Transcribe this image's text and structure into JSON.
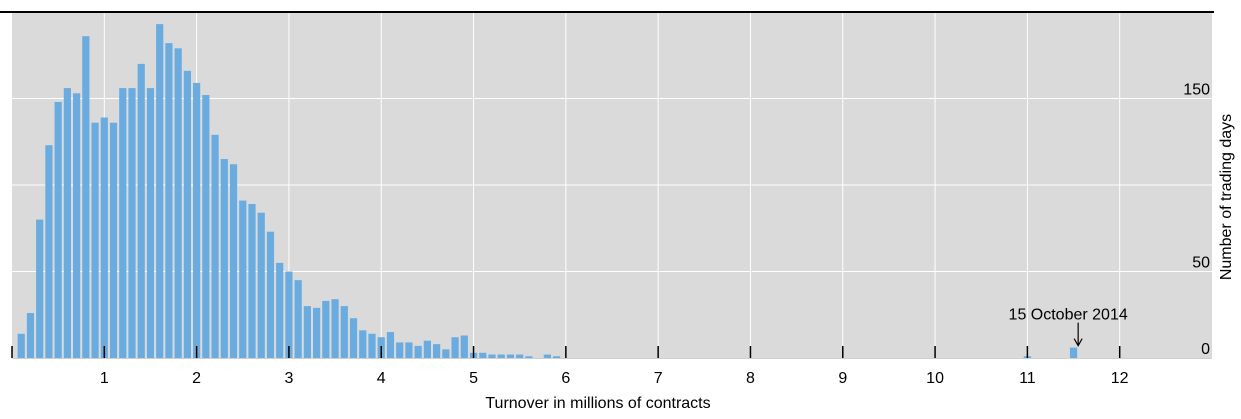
{
  "chart_data": {
    "type": "bar",
    "title": "",
    "xlabel": "Turnover in millions of contracts",
    "ylabel": "Number of trading days",
    "xlim": [
      0,
      13
    ],
    "ylim": [
      0,
      200
    ],
    "x_ticks": [
      1,
      2,
      3,
      4,
      5,
      6,
      7,
      8,
      9,
      10,
      11,
      12
    ],
    "y_ticks": [
      0,
      50,
      100,
      150
    ],
    "y_tick_labels": [
      "0",
      "50",
      "",
      "150"
    ],
    "grid": true,
    "bin_width": 0.1,
    "bin_centers": [
      0.1,
      0.2,
      0.3,
      0.4,
      0.5,
      0.6,
      0.7,
      0.8,
      0.9,
      1.0,
      1.1,
      1.2,
      1.3,
      1.4,
      1.5,
      1.6,
      1.7,
      1.8,
      1.9,
      2.0,
      2.1,
      2.2,
      2.3,
      2.4,
      2.5,
      2.6,
      2.7,
      2.8,
      2.9,
      3.0,
      3.1,
      3.2,
      3.3,
      3.4,
      3.5,
      3.6,
      3.7,
      3.8,
      3.9,
      4.0,
      4.1,
      4.2,
      4.3,
      4.4,
      4.5,
      4.6,
      4.7,
      4.8,
      4.9,
      5.0,
      5.1,
      5.2,
      5.3,
      5.4,
      5.5,
      5.6,
      5.7,
      5.8,
      5.9,
      6.0,
      6.1,
      6.2,
      6.3,
      6.4,
      6.5,
      6.6,
      6.7,
      6.8,
      6.9,
      7.0,
      7.1,
      7.2,
      7.3,
      7.4,
      7.5,
      7.6,
      7.7,
      7.8,
      7.9,
      8.0,
      8.1,
      8.2,
      8.3,
      8.4,
      8.5,
      8.6,
      8.7,
      8.8,
      8.9,
      9.0,
      9.1,
      9.2,
      9.3,
      9.4,
      9.5,
      9.6,
      9.7,
      9.8,
      9.9,
      10.0,
      10.1,
      10.2,
      10.3,
      10.4,
      10.5,
      10.6,
      10.7,
      10.8,
      10.9,
      11.0,
      11.1,
      11.2,
      11.3,
      11.4,
      11.5,
      11.6,
      11.7,
      11.8,
      11.9,
      12.0,
      12.1,
      12.2,
      12.3,
      12.4,
      12.5,
      12.6,
      12.7,
      12.8,
      12.9
    ],
    "values": [
      14,
      26,
      80,
      123,
      148,
      156,
      153,
      186,
      136,
      139,
      136,
      156,
      156,
      170,
      156,
      193,
      182,
      179,
      166,
      159,
      152,
      129,
      115,
      112,
      91,
      89,
      84,
      73,
      55,
      50,
      45,
      30,
      29,
      33,
      34,
      30,
      23,
      16,
      14,
      12,
      15,
      9,
      9,
      7,
      10,
      8,
      5,
      12,
      13,
      3,
      3,
      2,
      2,
      2,
      2,
      1,
      0,
      2,
      1,
      0,
      0,
      0,
      0,
      0,
      0,
      0,
      0,
      0,
      0,
      0,
      0,
      0,
      0,
      0,
      0,
      0,
      0,
      0,
      0,
      0,
      0,
      0,
      0,
      0,
      0,
      0,
      0,
      0,
      0,
      0,
      0,
      0,
      0,
      0,
      0,
      0,
      0,
      0,
      0,
      0,
      0,
      0,
      0,
      0,
      0,
      0,
      0,
      0,
      0,
      1,
      0,
      0,
      0,
      0,
      6,
      0,
      0,
      0,
      0,
      0,
      0,
      0,
      0,
      0,
      0,
      0,
      0,
      0,
      0
    ],
    "annotations": [
      {
        "text": "15 October 2014",
        "x": 11.55,
        "y": 6
      }
    ],
    "colors": {
      "bar": "#6aabe0",
      "plot_background": "#dadada",
      "grid": "#ffffff"
    }
  }
}
